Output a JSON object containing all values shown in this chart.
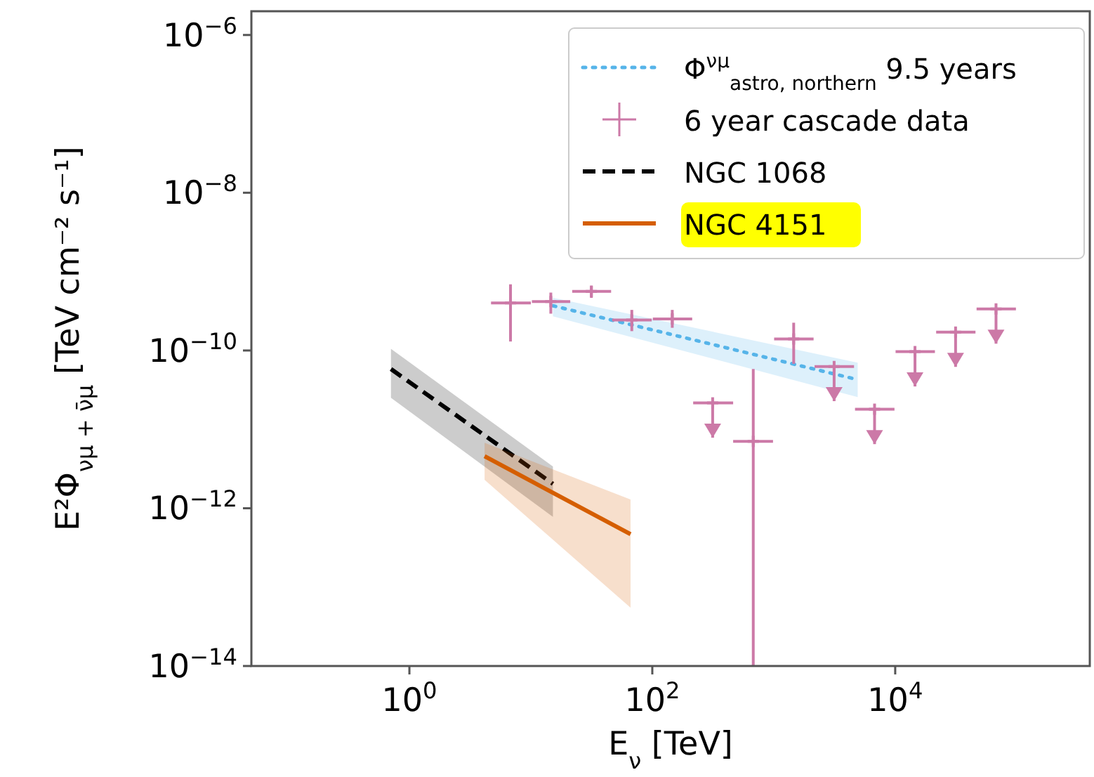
{
  "chart_data": {
    "type": "line",
    "xlabel": "E$_{ν}$ [TeV]",
    "ylabel": "E²Φ$_{νμ + ν̄μ}$ [TeV cm⁻² s⁻¹]",
    "log": "xy",
    "grid": false,
    "legend": "top right",
    "xlim": [
      0.05,
      400000
    ],
    "ylim": [
      1e-14,
      2e-06
    ],
    "xticks": [
      {
        "value": 1,
        "label": "10$^{0}$"
      },
      {
        "value": 100,
        "label": "10$^{2}$"
      },
      {
        "value": 10000,
        "label": "10$^{4}$"
      }
    ],
    "yticks": [
      {
        "value": 1e-14,
        "label": "10$^{−14}$"
      },
      {
        "value": 1e-12,
        "label": "10$^{−12}$"
      },
      {
        "value": 1e-10,
        "label": "10$^{−10}$"
      },
      {
        "value": 1e-08,
        "label": "10$^{−8}$"
      },
      {
        "value": 1e-06,
        "label": "10$^{−6}$"
      }
    ],
    "series": [
      {
        "name": "Φ$^{νμ}$$_{astro, northern}$ 9.5 years",
        "color": "#56b4e9",
        "line_style": "dotted",
        "x": [
          15.2,
          4910
        ],
        "values": [
          3.69e-10,
          4.27e-11
        ],
        "lower": [
          2.71e-10,
          2.57e-11
        ],
        "upper": [
          4.68e-10,
          7e-11
        ]
      },
      {
        "name": "6 year cascade data",
        "type": "scatter",
        "marker": "cross",
        "color": "#cc79a7",
        "x": [
          6.8,
          14.6,
          31.5,
          67.8,
          146,
          678,
          1459
        ],
        "values": [
          4e-10,
          4.17e-10,
          5.61e-10,
          2.44e-10,
          2.51e-10,
          7.03e-12,
          1.4e-10
        ],
        "errors": [
          [
            1.3e-10,
            6.9e-10
          ],
          [
            2.93e-10,
            5.42e-10
          ],
          [
            4.65e-10,
            6.64e-10
          ],
          [
            1.76e-10,
            3.27e-10
          ],
          [
            1.94e-10,
            3.27e-10
          ],
          [
            1e-14,
            5.82e-11
          ],
          [
            6.78e-11,
            2.25e-10
          ]
        ],
        "xerrors": [
          [
            4.7,
            10
          ],
          [
            10.2,
            21.1
          ],
          [
            21.9,
            45.8
          ],
          [
            46.8,
            98.9
          ],
          [
            101,
            213
          ],
          [
            463,
            986
          ],
          [
            1007,
            2128
          ]
        ]
      },
      {
        "type": "scatter",
        "marker": "cross",
        "color": "#cc79a7",
        "x": [
          314,
          3141,
          6761,
          14550,
          31410,
          67610
        ],
        "values": [
          2.16e-11,
          6.27e-11,
          1.8e-11,
          9.68e-11,
          1.71e-10,
          3.37e-10
        ],
        "errors": [
          [
            7.85e-12,
            2.16e-11
          ],
          [
            2.28e-11,
            6.27e-11
          ],
          [
            6.5e-12,
            1.8e-11
          ],
          [
            3.5e-11,
            9.68e-11
          ],
          [
            6.2e-11,
            1.71e-10
          ],
          [
            1.22e-10,
            3.37e-10
          ]
        ],
        "xerrors": [
          [
            217,
            463
          ],
          [
            2168,
            4581
          ],
          [
            4667,
            9863
          ],
          [
            10070,
            21230
          ],
          [
            21730,
            45810
          ],
          [
            46770,
            98620
          ]
        ]
      },
      {
        "name": "NGC 1068",
        "color": "#000000",
        "line_style": "dashed",
        "x": [
          0.705,
          15.2
        ],
        "values": [
          5.82e-11,
          2.04e-12
        ],
        "lower": [
          2.51e-11,
          7.76e-13
        ],
        "upper": [
          1.05e-10,
          3.39e-12
        ]
      },
      {
        "name": "NGC 4151",
        "color": "#d55e00",
        "line_style": "solid",
        "x": [
          4.16,
          66.2
        ],
        "values": [
          4.57e-12,
          4.68e-13
        ],
        "lower": [
          2.29e-12,
          5.5e-14
        ],
        "upper": [
          6.76e-12,
          1.29e-12
        ]
      }
    ]
  }
}
